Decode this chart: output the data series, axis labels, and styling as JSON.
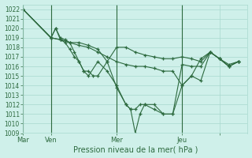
{
  "title": "Pression niveau de la mer( hPa )",
  "ylim": [
    1009,
    1022.5
  ],
  "yticks": [
    1009,
    1010,
    1011,
    1012,
    1013,
    1014,
    1015,
    1016,
    1017,
    1018,
    1019,
    1020,
    1021,
    1022
  ],
  "bg_color": "#cff0ea",
  "grid_color": "#a8d8ce",
  "line_color": "#2d6a3f",
  "xlim": [
    0,
    96
  ],
  "x_tick_positions": [
    0,
    12,
    40,
    68,
    84
  ],
  "x_tick_labels": [
    "Mar",
    "Ven",
    "Mer",
    "Jeu",
    ""
  ],
  "vline_positions": [
    0,
    12,
    40,
    68
  ],
  "series": [
    [
      0,
      1022,
      12,
      1019,
      16,
      1018.8,
      20,
      1018.5,
      24,
      1018.5,
      28,
      1018.2,
      32,
      1017.8,
      36,
      1016.5,
      40,
      1018,
      44,
      1018,
      48,
      1017.5,
      52,
      1017.2,
      56,
      1017,
      60,
      1016.8,
      64,
      1016.8,
      68,
      1017,
      72,
      1016.8,
      76,
      1016.5,
      80,
      1017.5,
      84,
      1016.8,
      88,
      1016.2,
      92,
      1016.5
    ],
    [
      0,
      1022,
      12,
      1019,
      14,
      1020,
      16,
      1019,
      18,
      1018.8,
      20,
      1018.5,
      22,
      1017.5,
      24,
      1016.5,
      26,
      1015.5,
      28,
      1015,
      32,
      1016.5,
      36,
      1015.5,
      40,
      1014,
      44,
      1012,
      46,
      1011.5,
      48,
      1009,
      50,
      1011,
      52,
      1012,
      56,
      1012,
      60,
      1011,
      64,
      1011,
      68,
      1016.2,
      72,
      1016,
      76,
      1016,
      80,
      1017.5,
      84,
      1016.8,
      88,
      1016,
      92,
      1016.5
    ],
    [
      0,
      1022,
      12,
      1019,
      14,
      1020,
      16,
      1018.8,
      18,
      1018.5,
      20,
      1017.8,
      22,
      1017,
      24,
      1016.5,
      26,
      1015.5,
      28,
      1015.5,
      30,
      1015,
      32,
      1015,
      36,
      1016.5,
      40,
      1013.8,
      44,
      1012,
      46,
      1011.5,
      48,
      1011.5,
      50,
      1012,
      52,
      1012,
      56,
      1011.5,
      60,
      1011,
      64,
      1011,
      68,
      1014,
      72,
      1015,
      76,
      1014.5,
      80,
      1017.5,
      84,
      1016.8,
      88,
      1016,
      92,
      1016.5
    ],
    [
      0,
      1022,
      12,
      1019,
      16,
      1018.8,
      20,
      1018.5,
      24,
      1018.2,
      28,
      1018,
      32,
      1017.5,
      36,
      1017,
      40,
      1016.5,
      44,
      1016.2,
      48,
      1016,
      52,
      1016,
      56,
      1015.8,
      60,
      1015.5,
      64,
      1015.5,
      68,
      1014,
      72,
      1015,
      76,
      1016.8,
      80,
      1017.5,
      84,
      1016.8,
      88,
      1016,
      92,
      1016.5
    ]
  ]
}
